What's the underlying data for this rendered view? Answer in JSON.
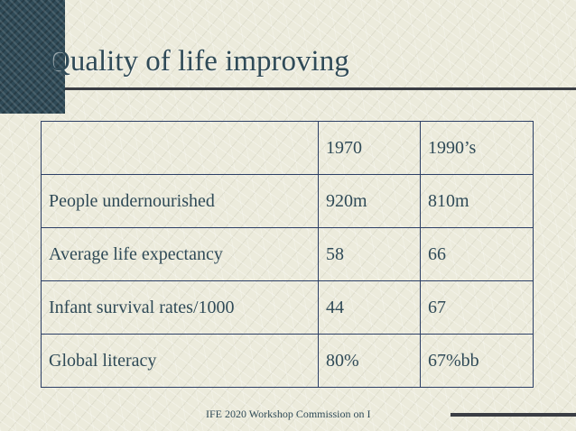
{
  "slide": {
    "title": "Quality of life improving",
    "footer": "IFE 2020 Workshop Commission on I"
  },
  "table": {
    "header": [
      "",
      "1970",
      "1990’s"
    ],
    "rows": [
      [
        "People undernourished",
        "920m",
        "810m"
      ],
      [
        "Average life expectancy",
        "58",
        "66"
      ],
      [
        "Infant survival rates/1000",
        "44",
        "67"
      ],
      [
        "Global literacy",
        "80%",
        "67%bb"
      ]
    ]
  },
  "colors": {
    "background": "#ecebdc",
    "text": "#2f4a57",
    "table_border": "#2c3f66",
    "rule": "#3a3d44"
  }
}
